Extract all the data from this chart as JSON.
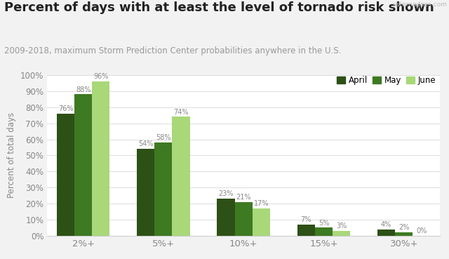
{
  "title": "Percent of days with at least the level of tornado risk shown",
  "subtitle": "2009-2018, maximum Storm Prediction Center probabilities anywhere in the U.S.",
  "watermark": "ustornadoes.com",
  "categories": [
    "2%+",
    "5%+",
    "10%+",
    "15%+",
    "30%+"
  ],
  "series": {
    "April": [
      76,
      54,
      23,
      7,
      4
    ],
    "May": [
      88,
      58,
      21,
      5,
      2
    ],
    "June": [
      96,
      74,
      17,
      3,
      0
    ]
  },
  "colors": {
    "April": "#2d5016",
    "May": "#3d7a22",
    "June": "#a8d878"
  },
  "ylabel": "Percent of total days",
  "ylim": [
    0,
    100
  ],
  "yticks": [
    0,
    10,
    20,
    30,
    40,
    50,
    60,
    70,
    80,
    90,
    100
  ],
  "background_color": "#f2f2f2",
  "plot_bg_color": "#ffffff",
  "title_fontsize": 13,
  "subtitle_fontsize": 8.5,
  "label_fontsize": 7,
  "legend_fontsize": 8.5,
  "bar_width": 0.22,
  "watermark_color": "#bbbbbb"
}
